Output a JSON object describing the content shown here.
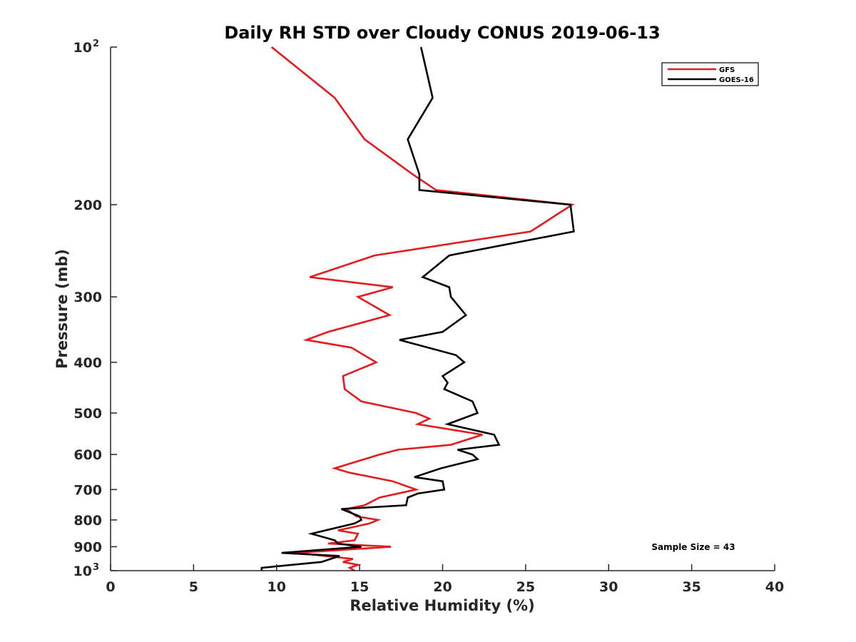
{
  "chart_data": {
    "type": "line",
    "title": "Daily RH STD over Cloudy CONUS 2019-06-13",
    "xlabel": "Relative Humidity (%)",
    "ylabel": "Pressure (mb)",
    "xlim": [
      0,
      40
    ],
    "ylim": [
      100,
      1000
    ],
    "yscale": "log",
    "y_reversed": true,
    "grid": false,
    "x_ticks": [
      0,
      5,
      10,
      15,
      20,
      25,
      30,
      35,
      40
    ],
    "x_tick_labels": [
      "0",
      "5",
      "10",
      "15",
      "20",
      "25",
      "30",
      "35",
      "40"
    ],
    "y_ticks": [
      100,
      200,
      300,
      400,
      500,
      600,
      700,
      800,
      900,
      1000
    ],
    "y_tick_labels": [
      {
        "base": "10",
        "sup": "2"
      },
      {
        "base": "200",
        "sup": ""
      },
      {
        "base": "300",
        "sup": ""
      },
      {
        "base": "400",
        "sup": ""
      },
      {
        "base": "500",
        "sup": ""
      },
      {
        "base": "600",
        "sup": ""
      },
      {
        "base": "700",
        "sup": ""
      },
      {
        "base": "800",
        "sup": ""
      },
      {
        "base": "900",
        "sup": ""
      },
      {
        "base": "10",
        "sup": "3"
      }
    ],
    "legend_position": "top-right",
    "annotation": "Sample Size = 43",
    "series": [
      {
        "name": "GFS",
        "color": "#e41a1c",
        "points": [
          [
            9.7,
            100
          ],
          [
            13.5,
            125
          ],
          [
            15.3,
            150
          ],
          [
            18.2,
            175
          ],
          [
            19.6,
            187.5
          ],
          [
            27.8,
            200
          ],
          [
            25.3,
            225
          ],
          [
            15.9,
            250
          ],
          [
            12.0,
            275
          ],
          [
            17.0,
            287.5
          ],
          [
            14.9,
            300
          ],
          [
            16.8,
            325
          ],
          [
            13.1,
            350
          ],
          [
            11.8,
            362.5
          ],
          [
            14.5,
            375
          ],
          [
            16.0,
            400
          ],
          [
            14.0,
            425
          ],
          [
            14.1,
            450
          ],
          [
            15.1,
            475
          ],
          [
            18.4,
            500
          ],
          [
            19.2,
            512.5
          ],
          [
            18.5,
            525
          ],
          [
            22.4,
            550
          ],
          [
            20.5,
            575
          ],
          [
            17.3,
            587.5
          ],
          [
            16.2,
            600
          ],
          [
            13.5,
            637.5
          ],
          [
            14.4,
            650
          ],
          [
            17.0,
            675
          ],
          [
            18.4,
            700
          ],
          [
            16.2,
            725
          ],
          [
            15.3,
            750
          ],
          [
            14.2,
            762.5
          ],
          [
            14.8,
            787.5
          ],
          [
            16.1,
            800
          ],
          [
            15.6,
            812.5
          ],
          [
            13.7,
            837.5
          ],
          [
            14.9,
            850
          ],
          [
            14.7,
            875
          ],
          [
            13.1,
            887.5
          ],
          [
            16.9,
            900
          ],
          [
            11.2,
            925
          ],
          [
            14.6,
            950
          ],
          [
            14.0,
            962.5
          ],
          [
            14.9,
            975
          ],
          [
            14.4,
            987.5
          ],
          [
            14.7,
            1000
          ]
        ]
      },
      {
        "name": "GOES-16",
        "color": "#000000",
        "points": [
          [
            18.7,
            100
          ],
          [
            19.4,
            125
          ],
          [
            17.9,
            150
          ],
          [
            18.6,
            175
          ],
          [
            18.6,
            187.5
          ],
          [
            27.7,
            200
          ],
          [
            27.9,
            225
          ],
          [
            20.4,
            250
          ],
          [
            18.8,
            275
          ],
          [
            20.4,
            287.5
          ],
          [
            20.5,
            300
          ],
          [
            21.4,
            325
          ],
          [
            20.0,
            350
          ],
          [
            17.4,
            362.5
          ],
          [
            20.8,
            387.5
          ],
          [
            21.3,
            400
          ],
          [
            20.0,
            425
          ],
          [
            20.3,
            437.5
          ],
          [
            20.1,
            450
          ],
          [
            21.8,
            475
          ],
          [
            22.1,
            500
          ],
          [
            20.3,
            525
          ],
          [
            23.1,
            550
          ],
          [
            23.4,
            575
          ],
          [
            20.9,
            587.5
          ],
          [
            21.8,
            600
          ],
          [
            22.1,
            612.5
          ],
          [
            19.9,
            637.5
          ],
          [
            18.3,
            662.5
          ],
          [
            20.0,
            675
          ],
          [
            20.1,
            700
          ],
          [
            18.5,
            712.5
          ],
          [
            17.9,
            725
          ],
          [
            17.8,
            750
          ],
          [
            13.9,
            762.5
          ],
          [
            15.0,
            787.5
          ],
          [
            15.1,
            800
          ],
          [
            14.7,
            812.5
          ],
          [
            12.1,
            850
          ],
          [
            13.5,
            875
          ],
          [
            13.7,
            887.5
          ],
          [
            15.1,
            900
          ],
          [
            10.3,
            925
          ],
          [
            13.8,
            937.5
          ],
          [
            12.7,
            962.5
          ],
          [
            9.1,
            987.5
          ],
          [
            9.1,
            1000
          ]
        ]
      }
    ]
  }
}
